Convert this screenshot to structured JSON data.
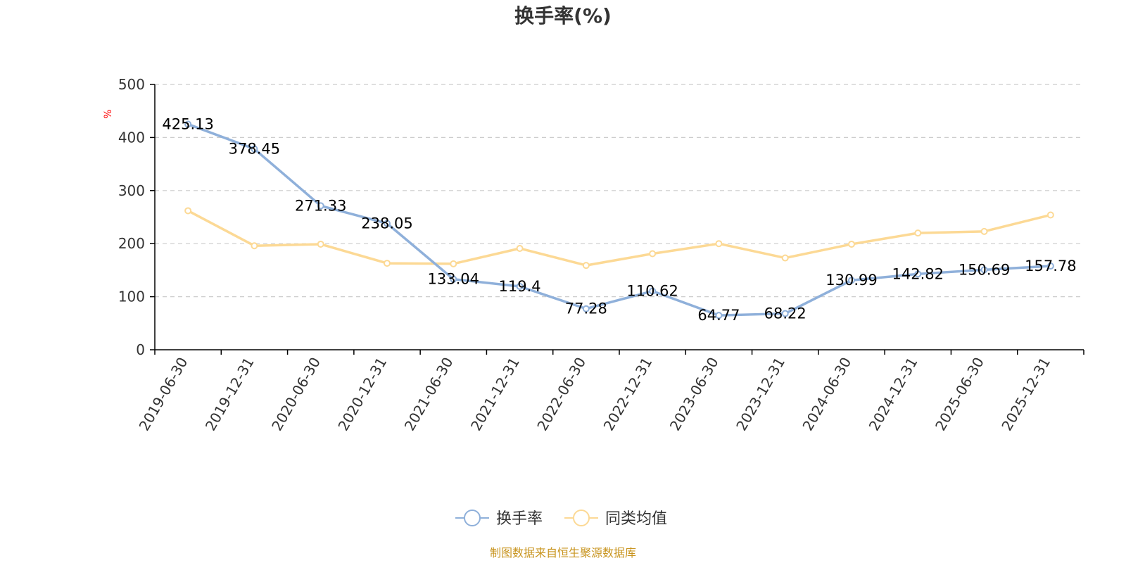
{
  "chart_data": {
    "type": "line",
    "title": "换手率(%)",
    "unit_label": "%",
    "ylim": [
      0,
      500
    ],
    "yticks": [
      0,
      100,
      200,
      300,
      400,
      500
    ],
    "categories": [
      "2019-06-30",
      "2019-12-31",
      "2020-06-30",
      "2020-12-31",
      "2021-06-30",
      "2021-12-31",
      "2022-06-30",
      "2022-12-31",
      "2023-06-30",
      "2023-12-31",
      "2024-06-30",
      "2024-12-31",
      "2025-06-30",
      "2025-12-31"
    ],
    "series": [
      {
        "name": "换手率",
        "color": "#8fb0da",
        "values": [
          425.13,
          378.45,
          271.33,
          238.05,
          133.04,
          119.4,
          77.28,
          110.62,
          64.77,
          68.22,
          130.99,
          142.82,
          150.69,
          157.78
        ],
        "labels": [
          "425.13",
          "378.45",
          "271.33",
          "238.05",
          "133.04",
          "119.4",
          "77.28",
          "110.62",
          "64.77",
          "68.22",
          "130.99",
          "142.82",
          "150.69",
          "157.78"
        ]
      },
      {
        "name": "同类均值",
        "color": "#fcd995",
        "values": [
          262,
          196,
          199,
          163,
          162,
          191,
          159,
          181,
          200,
          173,
          199,
          220,
          223,
          254
        ]
      }
    ],
    "grid": true,
    "legend_position": "bottom-center",
    "source": "制图数据来自恒生聚源数据库"
  }
}
